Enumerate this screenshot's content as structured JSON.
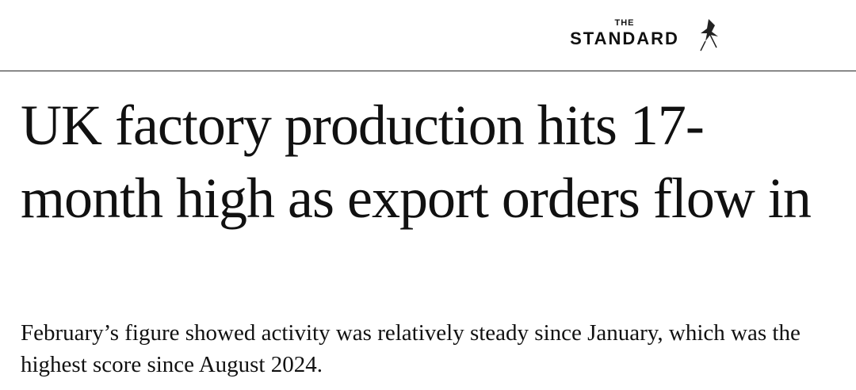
{
  "header": {
    "logo_top": "THE",
    "logo": "STANDARD"
  },
  "article": {
    "headline": "UK factory production hits 17-month high as export orders flow in",
    "standfirst": "February’s figure showed activity was relatively steady since January, which was the highest score since August 2024."
  }
}
